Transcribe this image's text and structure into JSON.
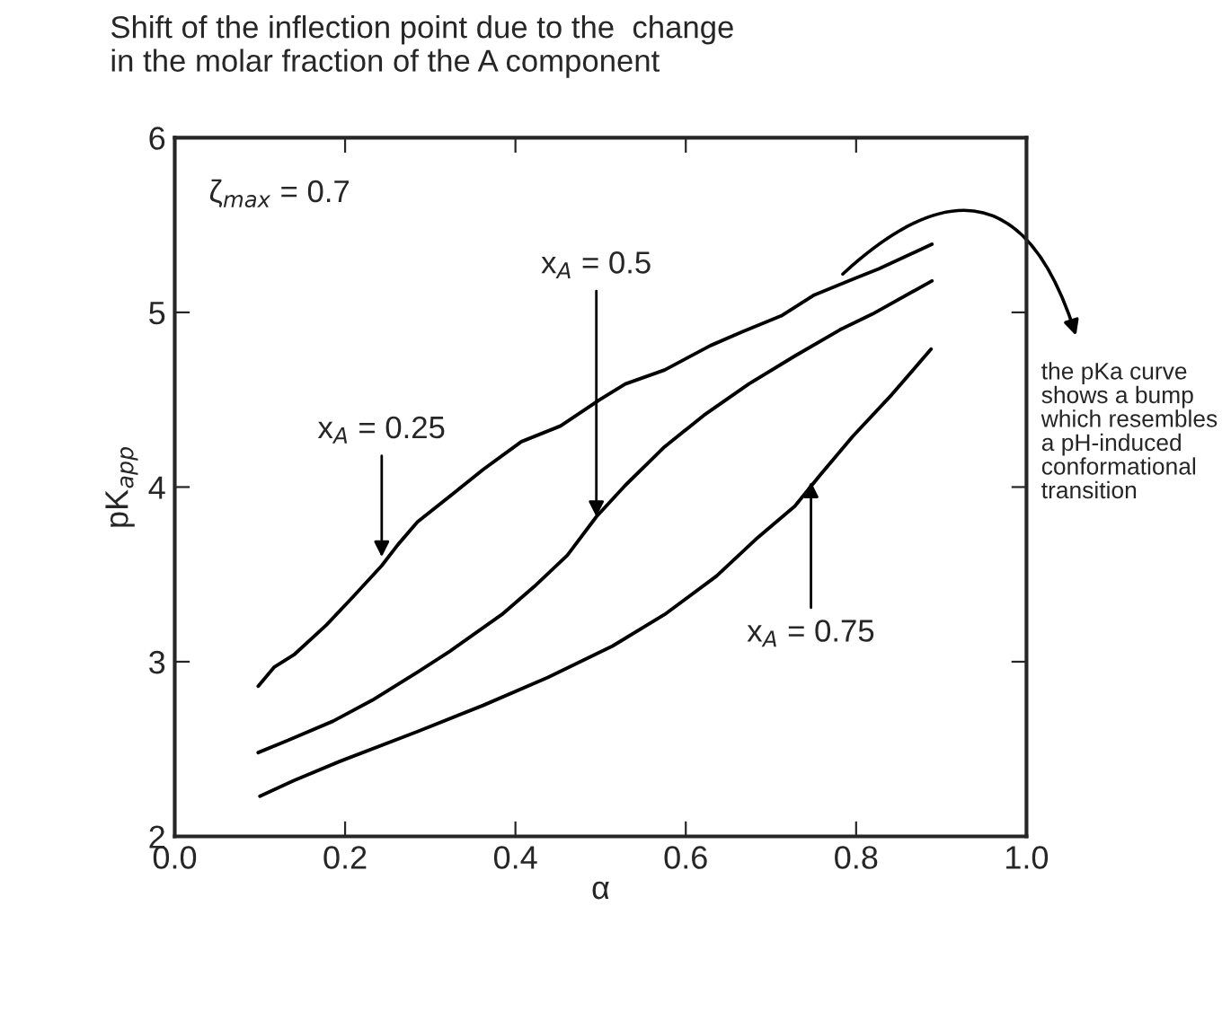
{
  "chart_data": {
    "type": "line",
    "title": "Shift of the inflection point due to the  change\nin the molar fraction of the A component",
    "xlabel": "α",
    "ylabel": "pK$_{app}$",
    "xlim": [
      0.0,
      1.0
    ],
    "ylim": [
      2,
      6
    ],
    "xticks": [
      {
        "value": 0.0,
        "label": "0.0"
      },
      {
        "value": 0.2,
        "label": "0.2"
      },
      {
        "value": 0.4,
        "label": "0.4"
      },
      {
        "value": 0.6,
        "label": "0.6"
      },
      {
        "value": 0.8,
        "label": "0.8"
      },
      {
        "value": 1.0,
        "label": "1.0"
      }
    ],
    "yticks": [
      2,
      3,
      4,
      5,
      6
    ],
    "grid": false,
    "marker": "none",
    "line_style": "solid",
    "series": [
      {
        "color": "#000000",
        "x": [
          0.098,
          0.117,
          0.14,
          0.178,
          0.209,
          0.243,
          0.262,
          0.285,
          0.339,
          0.362,
          0.407,
          0.453,
          0.499,
          0.529,
          0.575,
          0.629,
          0.667,
          0.712,
          0.751,
          0.796,
          0.827,
          0.889
        ],
        "values": [
          2.86,
          2.97,
          3.04,
          3.21,
          3.37,
          3.55,
          3.67,
          3.8,
          4.01,
          4.1,
          4.26,
          4.35,
          4.5,
          4.59,
          4.67,
          4.81,
          4.89,
          4.98,
          5.1,
          5.19,
          5.25,
          5.39
        ]
      },
      {
        "color": "#000000",
        "x": [
          0.098,
          0.133,
          0.186,
          0.232,
          0.285,
          0.323,
          0.384,
          0.422,
          0.461,
          0.495,
          0.529,
          0.575,
          0.621,
          0.674,
          0.728,
          0.781,
          0.819,
          0.889
        ],
        "values": [
          2.48,
          2.55,
          2.66,
          2.78,
          2.94,
          3.06,
          3.27,
          3.43,
          3.61,
          3.83,
          4.01,
          4.23,
          4.41,
          4.59,
          4.75,
          4.9,
          4.99,
          5.18
        ]
      },
      {
        "color": "#000000",
        "x": [
          0.1,
          0.14,
          0.194,
          0.285,
          0.362,
          0.438,
          0.514,
          0.575,
          0.636,
          0.682,
          0.728,
          0.758,
          0.796,
          0.842,
          0.888
        ],
        "values": [
          2.23,
          2.32,
          2.43,
          2.6,
          2.75,
          2.91,
          3.09,
          3.27,
          3.49,
          3.7,
          3.89,
          4.07,
          4.29,
          4.53,
          4.79
        ]
      }
    ],
    "annotations": [
      "ζ$_{max}$ = 0.7",
      {
        "text": "x$_{A}$ = 0.25",
        "x": 0.243,
        "y": 3.6
      },
      {
        "text": "x$_{A}$ = 0.5",
        "x": 0.495,
        "y": 3.83
      },
      {
        "text": "x$_{A}$ = 0.75",
        "x": 0.747,
        "y": 4.03
      },
      "the pKa curve\nshows a bump\nwhich resembles\na pH-induced\nconformational\ntransition"
    ]
  }
}
